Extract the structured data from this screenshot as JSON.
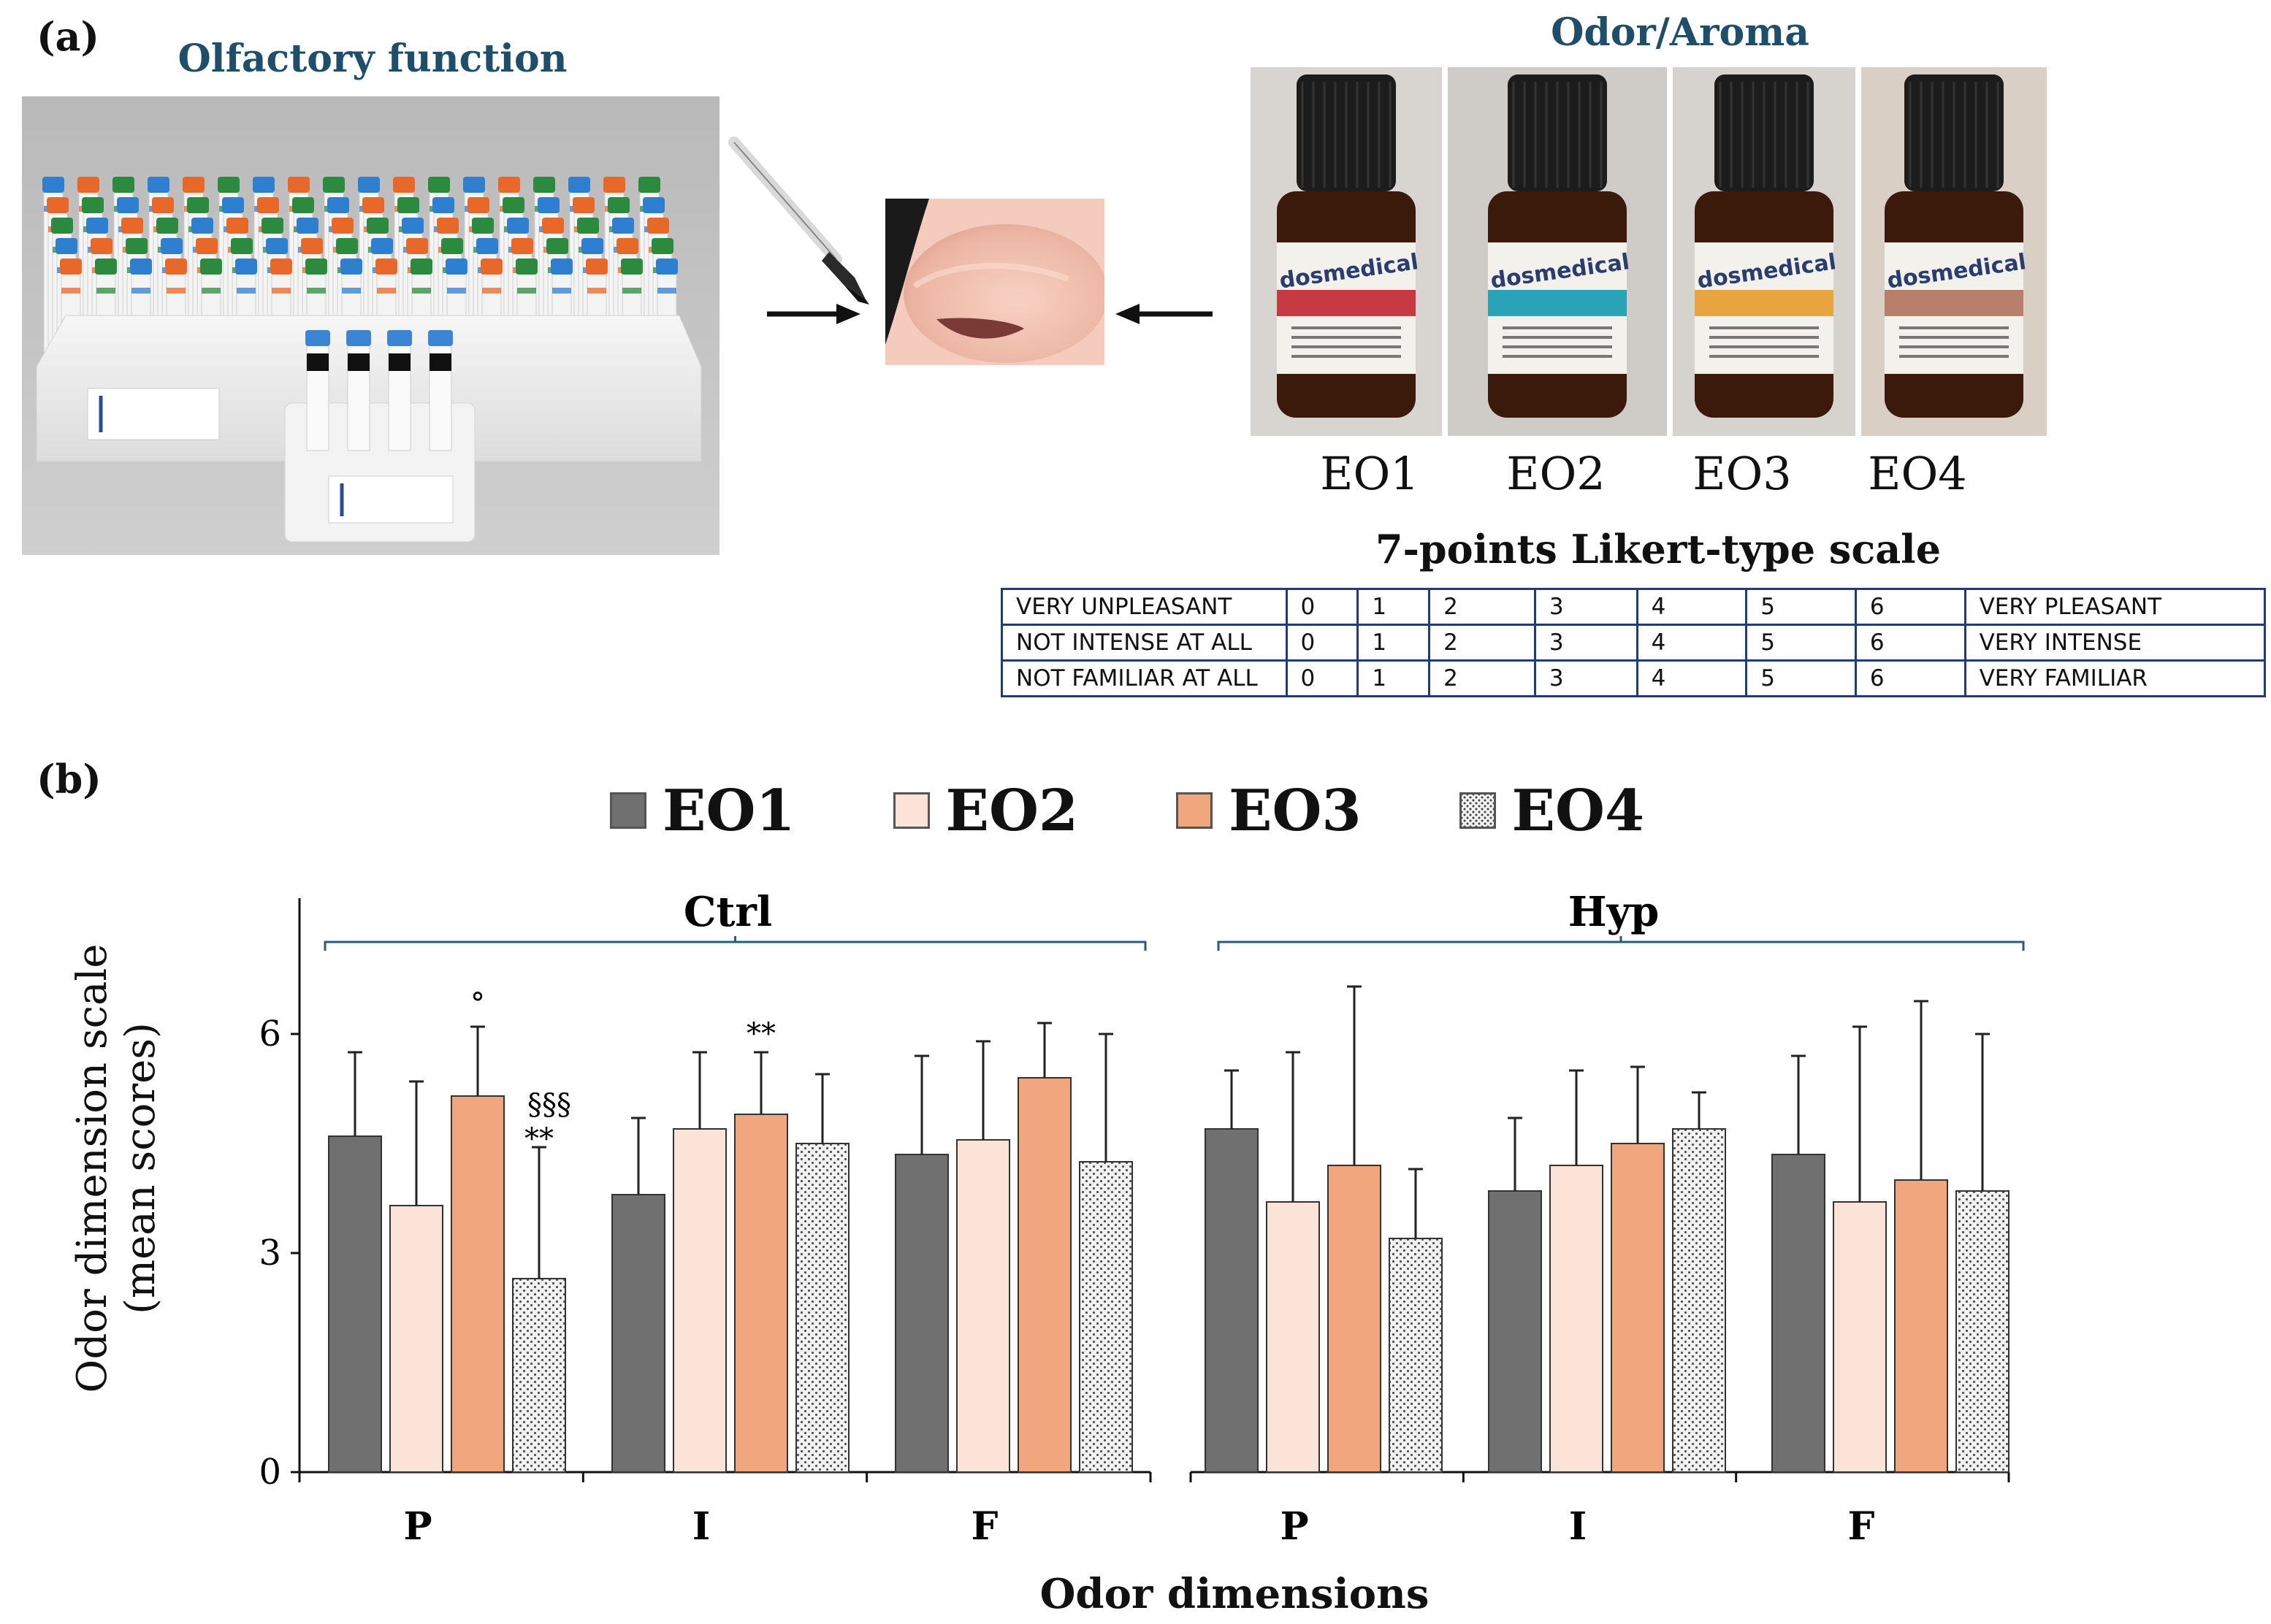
{
  "panel_a": {
    "label": "(a)",
    "olfactory_heading": "Olfactory function",
    "odor_heading": "Odor/Aroma",
    "bottles": [
      {
        "label": "EO1",
        "band_color": "#c73a44",
        "brand": "dosmedical"
      },
      {
        "label": "EO2",
        "band_color": "#2aa3b8",
        "brand": "dosmedical"
      },
      {
        "label": "EO3",
        "band_color": "#e9a640",
        "brand": "dosmedical"
      },
      {
        "label": "EO4",
        "band_color": "#b8806a",
        "brand": "dosmedical"
      }
    ],
    "likert": {
      "title": "7-points Likert-type scale",
      "rows": [
        {
          "left": "VERY UNPLEASANT",
          "points": [
            "0",
            "1",
            "2",
            "3",
            "4",
            "5",
            "6"
          ],
          "right": "VERY PLEASANT"
        },
        {
          "left": "NOT INTENSE AT ALL",
          "points": [
            "0",
            "1",
            "2",
            "3",
            "4",
            "5",
            "6"
          ],
          "right": "VERY INTENSE"
        },
        {
          "left": "NOT FAMILIAR AT ALL",
          "points": [
            "0",
            "1",
            "2",
            "3",
            "4",
            "5",
            "6"
          ],
          "right": "VERY FAMILIAR"
        }
      ]
    }
  },
  "panel_b": {
    "label": "(b)"
  },
  "chart_data": {
    "type": "bar",
    "title": "",
    "xlabel": "Odor dimensions",
    "ylabel": "Odor dimension scale (mean scores)",
    "ylabel_lines": [
      "Odor dimension scale",
      "(mean scores)"
    ],
    "ylim": [
      0,
      7
    ],
    "yticks": [
      0,
      3,
      6
    ],
    "grid": false,
    "legend_position": "top",
    "series": [
      {
        "name": "EO1",
        "color": "#707070",
        "pattern": "solid"
      },
      {
        "name": "EO2",
        "color": "#fbe3d8",
        "pattern": "solid"
      },
      {
        "name": "EO3",
        "color": "#f2a67e",
        "pattern": "solid"
      },
      {
        "name": "EO4",
        "color": "#e4e4e4",
        "pattern": "dots"
      }
    ],
    "groups": [
      {
        "name": "Ctrl",
        "categories": [
          "P",
          "I",
          "F"
        ],
        "values": [
          [
            4.6,
            3.65,
            5.15,
            2.65
          ],
          [
            3.8,
            4.7,
            4.9,
            4.5
          ],
          [
            4.35,
            4.55,
            5.4,
            4.25
          ]
        ],
        "errors": [
          [
            1.15,
            1.7,
            0.95,
            1.8
          ],
          [
            1.05,
            1.05,
            0.85,
            0.95
          ],
          [
            1.35,
            1.35,
            0.75,
            1.75
          ]
        ],
        "annotations": [
          {
            "category": 0,
            "series": 2,
            "text": "°"
          },
          {
            "category": 0,
            "series": 3,
            "text": "§§§"
          },
          {
            "category": 0,
            "series": 3,
            "text": "**"
          },
          {
            "category": 1,
            "series": 2,
            "text": "**"
          }
        ]
      },
      {
        "name": "Hyp",
        "categories": [
          "P",
          "I",
          "F"
        ],
        "values": [
          [
            4.7,
            3.7,
            4.2,
            3.2
          ],
          [
            3.85,
            4.2,
            4.5,
            4.7
          ],
          [
            4.35,
            3.7,
            4.0,
            3.85
          ]
        ],
        "errors": [
          [
            0.8,
            2.05,
            2.45,
            0.95
          ],
          [
            1.0,
            1.3,
            1.05,
            0.5
          ],
          [
            1.35,
            2.4,
            2.45,
            2.15
          ]
        ],
        "annotations": []
      }
    ]
  }
}
